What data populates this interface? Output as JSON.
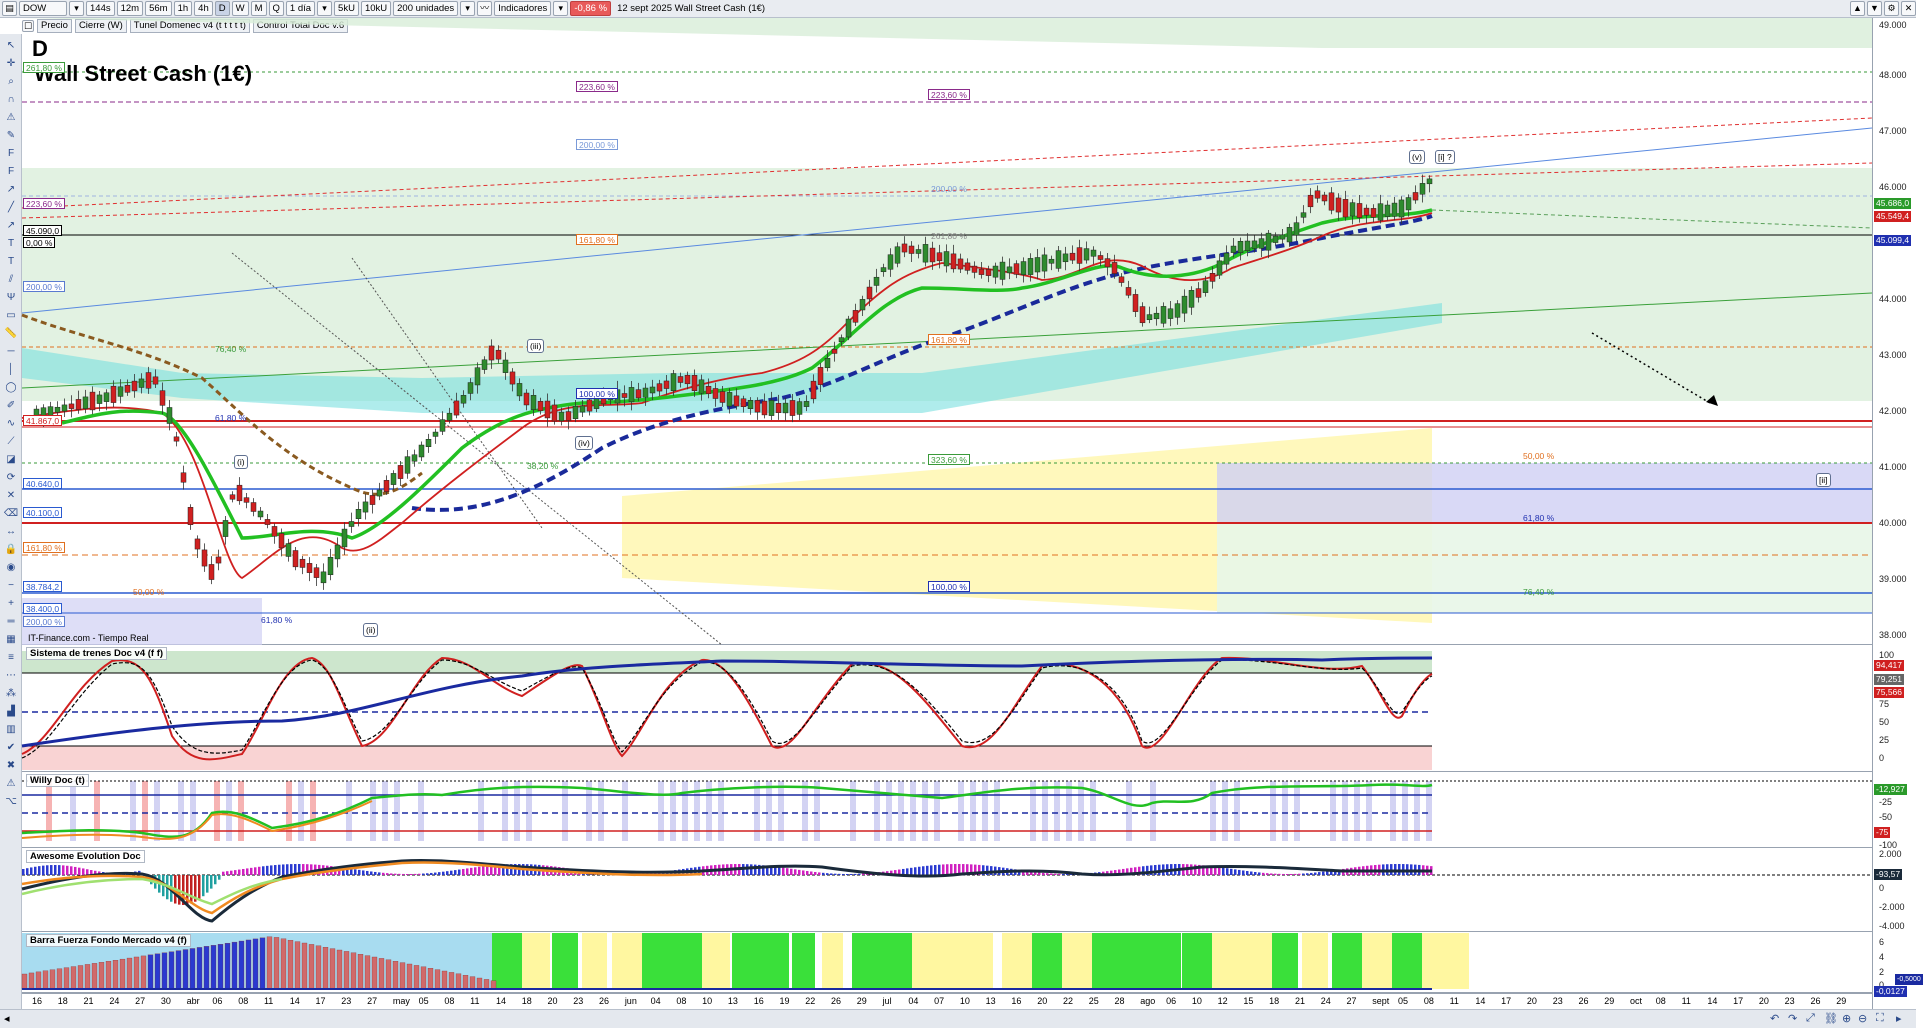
{
  "toolbar": {
    "symbol": "DOW",
    "periods": [
      "144s",
      "12m",
      "56m",
      "1h",
      "4h",
      "D",
      "W",
      "M",
      "Q"
    ],
    "selected_period": "D",
    "range": "1 día",
    "ticks": [
      "5kU",
      "10kU"
    ],
    "units": "200 unidades",
    "indicators_label": "Indicadores",
    "change": "-0,86 %",
    "date_title": "12 sept 2025 Wall Street Cash (1€)"
  },
  "toolbar2": {
    "chips": [
      "Precio",
      "Cierre (W)",
      "Tunel Domenec v4 (t t t t t)",
      "Control Total Doc v.6"
    ]
  },
  "main": {
    "period_big": "D",
    "title": "Wall Street Cash (1€)",
    "source": "IT-Finance.com - Tiempo Real",
    "left_labels": [
      {
        "text": "261,80 %",
        "color": "#3a9a3a"
      },
      {
        "text": "223,60 %",
        "color": "#8a2a8a"
      },
      {
        "text": "45.090,0",
        "color": "#000000"
      },
      {
        "text": "0,00 %",
        "color": "#000000"
      },
      {
        "text": "200,00 %",
        "color": "#5a7ad0"
      },
      {
        "text": "76,40 %",
        "color": "#3a9a3a"
      },
      {
        "text": "41.867,0",
        "color": "#d02020"
      },
      {
        "text": "40.640,0",
        "color": "#2a5ad0"
      },
      {
        "text": "40.100,0",
        "color": "#2a5ad0"
      },
      {
        "text": "161,80 %",
        "color": "#e07020"
      },
      {
        "text": "38.784,2",
        "color": "#2a5ad0"
      },
      {
        "text": "38.400,0",
        "color": "#2a5ad0"
      },
      {
        "text": "200,00 %",
        "color": "#5a7ad0"
      }
    ],
    "fib_labels": [
      {
        "text": "223,60 %",
        "color": "#8a2a8a"
      },
      {
        "text": "223,60 %",
        "color": "#8a2a8a"
      },
      {
        "text": "200,00 %",
        "color": "#7a9ad8"
      },
      {
        "text": "200,00 %",
        "color": "#7a9ad8"
      },
      {
        "text": "161,80 %",
        "color": "#e07020"
      },
      {
        "text": "261,80 %",
        "color": "#8a8a8a"
      },
      {
        "text": "161,80 %",
        "color": "#e07020"
      },
      {
        "text": "100,00 %",
        "color": "#2030b0"
      },
      {
        "text": "61,80 %",
        "color": "#2030b0"
      },
      {
        "text": "38,20 %",
        "color": "#3a9a3a"
      },
      {
        "text": "323,60 %",
        "color": "#3a9a3a"
      },
      {
        "text": "50,00 %",
        "color": "#e07020"
      },
      {
        "text": "61,80 %",
        "color": "#2030b0"
      },
      {
        "text": "100,00 %",
        "color": "#2030b0"
      },
      {
        "text": "76,40 %",
        "color": "#3a9a3a"
      },
      {
        "text": "50,00 %",
        "color": "#e07020"
      },
      {
        "text": "61,80 %",
        "color": "#2030b0"
      }
    ],
    "wave_labels": [
      "(iii)",
      "(iv)",
      "(v)",
      "[i] ?",
      "(i)",
      "(ii)",
      "[ii]"
    ],
    "y_ticks": [
      "49.000",
      "48.000",
      "47.000",
      "46.000",
      "45.000",
      "44.000",
      "43.000",
      "42.000",
      "41.000",
      "40.000",
      "39.000",
      "38.000"
    ],
    "price_tags": [
      {
        "text": "45.686,0",
        "color": "#2a9a2a"
      },
      {
        "text": "45.549,4",
        "color": "#d02020"
      },
      {
        "text": "45.099,4",
        "color": "#2030b0"
      }
    ]
  },
  "panes": {
    "trenes": {
      "title": "Sistema de trenes Doc v4 (f f)",
      "ticks": [
        "100",
        "75",
        "50",
        "25",
        "0"
      ],
      "tags": [
        "94,417",
        "79,251",
        "75,566"
      ]
    },
    "willy": {
      "title": "Willy Doc (t)",
      "ticks": [
        "-12,927",
        "-25",
        "-50",
        "-75",
        "-100"
      ]
    },
    "awesome": {
      "title": "Awesome Evolution Doc",
      "ticks": [
        "2.000",
        "-93,57",
        "0",
        "-2.000",
        "-4.000"
      ]
    },
    "barra": {
      "title": "Barra Fuerza Fondo Mercado v4 (f)",
      "ticks": [
        "6",
        "4",
        "2",
        "0",
        "-0,5000",
        "-0,0127"
      ]
    }
  },
  "xaxis": {
    "labels": [
      "16",
      "18",
      "21",
      "24",
      "27",
      "30",
      "abr",
      "06",
      "08",
      "11",
      "14",
      "17",
      "23",
      "27",
      "may",
      "05",
      "08",
      "11",
      "14",
      "18",
      "20",
      "23",
      "26",
      "jun",
      "04",
      "08",
      "10",
      "13",
      "16",
      "19",
      "22",
      "26",
      "29",
      "jul",
      "04",
      "07",
      "10",
      "13",
      "16",
      "20",
      "22",
      "25",
      "28",
      "ago",
      "06",
      "10",
      "12",
      "15",
      "18",
      "21",
      "24",
      "27",
      "sept",
      "05",
      "08",
      "11",
      "14",
      "17",
      "20",
      "23",
      "26",
      "29",
      "oct",
      "08",
      "11",
      "14",
      "17",
      "20",
      "23",
      "26",
      "29"
    ]
  },
  "colors": {
    "bull": "#2e8b2e",
    "bear": "#d02020",
    "ema_green": "#22c022",
    "dotted_blue": "#1a2a9a",
    "brown_dash": "#8a5a20",
    "green_zone": "#d8eed8",
    "cyan_band": "#7adfdf",
    "yellow_zone": "#fff7b0",
    "purple_zone": "#d0d0f4"
  }
}
